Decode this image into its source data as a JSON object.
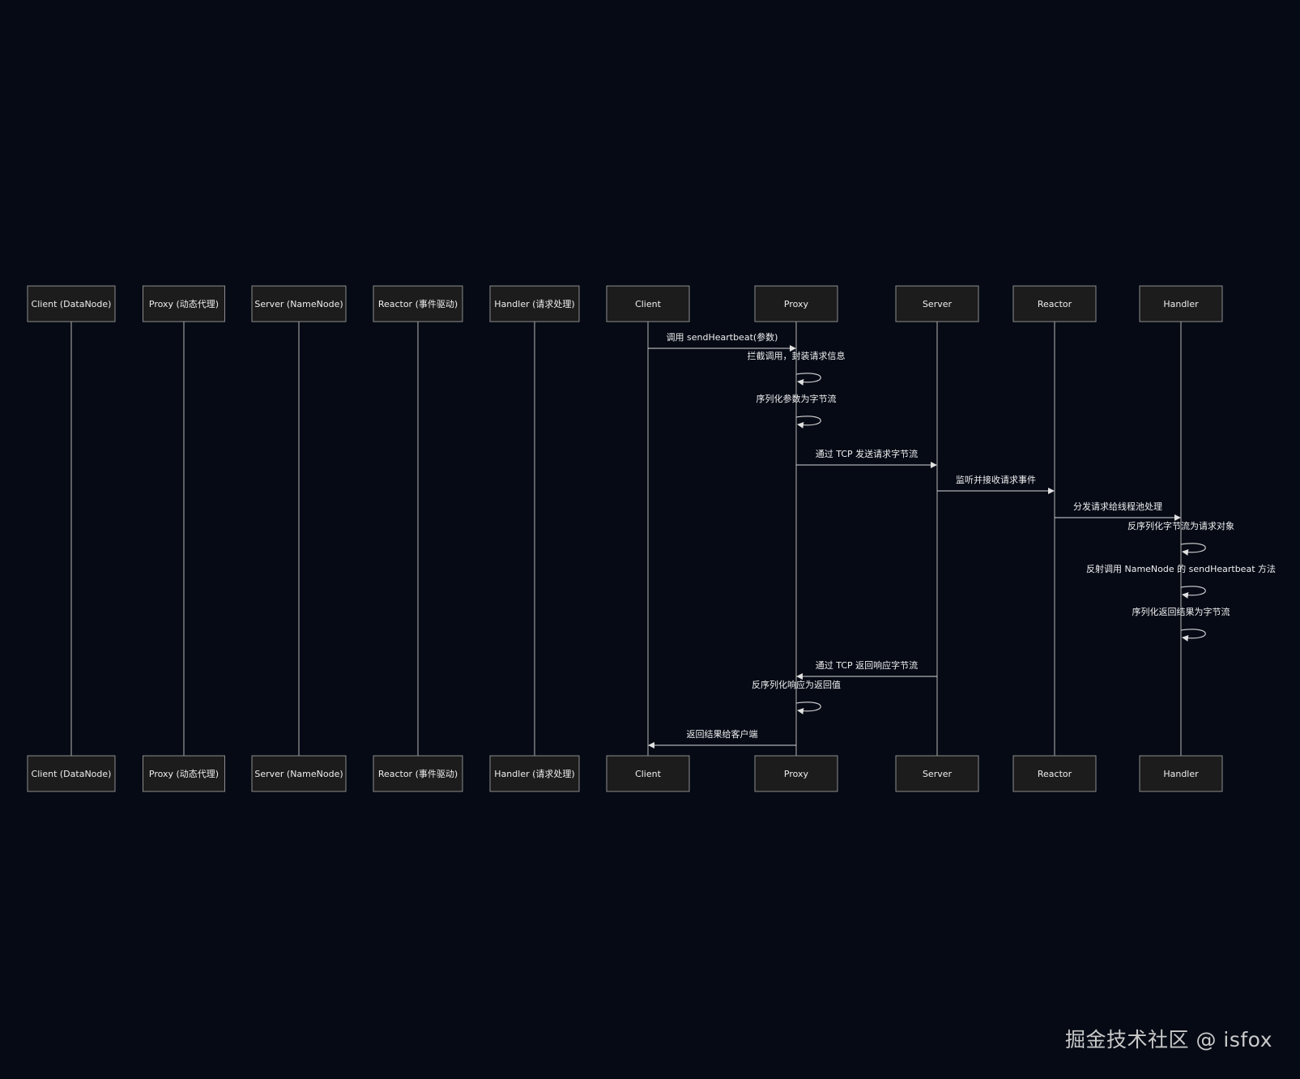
{
  "participants": [
    {
      "id": "client_dn",
      "label": "Client (DataNode)"
    },
    {
      "id": "proxy_dyn",
      "label": "Proxy (动态代理)"
    },
    {
      "id": "server_nn",
      "label": "Server (NameNode)"
    },
    {
      "id": "reactor_ev",
      "label": "Reactor (事件驱动)"
    },
    {
      "id": "handler_req",
      "label": "Handler (请求处理)"
    },
    {
      "id": "client",
      "label": "Client"
    },
    {
      "id": "proxy",
      "label": "Proxy"
    },
    {
      "id": "server",
      "label": "Server"
    },
    {
      "id": "reactor",
      "label": "Reactor"
    },
    {
      "id": "handler",
      "label": "Handler"
    }
  ],
  "messages": [
    {
      "from": "client",
      "to": "proxy",
      "label": "调用 sendHeartbeat(参数)"
    },
    {
      "from": "proxy",
      "to": "proxy",
      "label": "拦截调用，封装请求信息"
    },
    {
      "from": "proxy",
      "to": "proxy",
      "label": "序列化参数为字节流"
    },
    {
      "from": "proxy",
      "to": "server",
      "label": "通过 TCP 发送请求字节流"
    },
    {
      "from": "server",
      "to": "reactor",
      "label": "监听并接收请求事件"
    },
    {
      "from": "reactor",
      "to": "handler",
      "label": "分发请求给线程池处理"
    },
    {
      "from": "handler",
      "to": "handler",
      "label": "反序列化字节流为请求对象"
    },
    {
      "from": "handler",
      "to": "handler",
      "label": "反射调用 NameNode 的 sendHeartbeat 方法"
    },
    {
      "from": "handler",
      "to": "handler",
      "label": "序列化返回结果为字节流"
    },
    {
      "from": "server",
      "to": "proxy",
      "label": "通过 TCP 返回响应字节流"
    },
    {
      "from": "proxy",
      "to": "proxy",
      "label": "反序列化响应为返回值"
    },
    {
      "from": "proxy",
      "to": "client",
      "label": "返回结果给客户端"
    }
  ],
  "watermark": "掘金技术社区 @ isfox"
}
